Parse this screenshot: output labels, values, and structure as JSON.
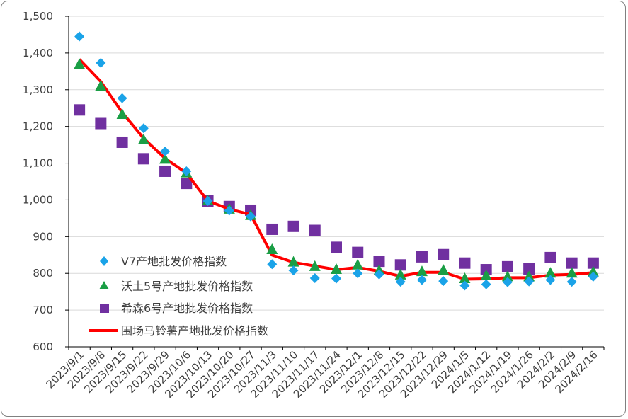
{
  "chart_data": {
    "type": "scatter",
    "title": "",
    "xlabel": "",
    "ylabel": "",
    "ylim": [
      600,
      1500
    ],
    "yticks": [
      600,
      700,
      800,
      900,
      1000,
      1100,
      1200,
      1300,
      1400,
      1500
    ],
    "ytick_labels": [
      "600",
      "700",
      "800",
      "900",
      "1,000",
      "1,100",
      "1,200",
      "1,300",
      "1,400",
      "1,500"
    ],
    "grid": true,
    "legend_position": "bottom-left",
    "categories": [
      "2023/9/1",
      "2023/9/8",
      "2023/9/15",
      "2023/9/22",
      "2023/9/29",
      "2023/10/6",
      "2023/10/13",
      "2023/10/20",
      "2023/10/27",
      "2023/11/3",
      "2023/11/10",
      "2023/11/17",
      "2023/11/24",
      "2023/12/1",
      "2023/12/8",
      "2023/12/15",
      "2023/12/22",
      "2023/12/29",
      "2024/1/5",
      "2024/1/12",
      "2024/1/19",
      "2024/1/26",
      "2024/2/2",
      "2024/2/9",
      "2024/2/16"
    ],
    "series": [
      {
        "name": "V7产地批发价格指数",
        "marker": "diamond",
        "color": "#1aa3e8",
        "values": [
          1445,
          1373,
          1277,
          1195,
          1132,
          1078,
          997,
          971,
          955,
          825,
          808,
          787,
          786,
          800,
          797,
          777,
          782,
          779,
          767,
          770,
          776,
          778,
          782,
          777,
          791
        ]
      },
      {
        "name": "沃土5号产地批发价格指数",
        "marker": "triangle",
        "color": "#1a9e45",
        "values": [
          1368,
          1309,
          1232,
          1163,
          1110,
          1073,
          997,
          974,
          957,
          864,
          830,
          818,
          810,
          822,
          807,
          795,
          804,
          808,
          785,
          793,
          790,
          790,
          800,
          800,
          803
        ]
      },
      {
        "name": "希森6号产地批发价格指数",
        "marker": "square",
        "color": "#7030a0",
        "values": [
          1245,
          1208,
          1157,
          1112,
          1078,
          1045,
          997,
          982,
          972,
          920,
          928,
          917,
          871,
          857,
          833,
          823,
          845,
          851,
          828,
          810,
          818,
          812,
          843,
          828,
          828
        ]
      },
      {
        "name": "围场马铃薯产地批发价格指数",
        "marker": "line",
        "color": "#ff0000",
        "values": [
          1383,
          1322,
          1238,
          1168,
          1113,
          1073,
          997,
          975,
          960,
          850,
          830,
          820,
          810,
          816,
          806,
          792,
          803,
          803,
          784,
          785,
          788,
          788,
          795,
          797,
          802
        ]
      }
    ]
  }
}
